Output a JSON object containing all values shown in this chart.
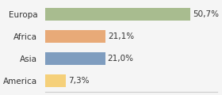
{
  "categories": [
    "America",
    "Asia",
    "Africa",
    "Europa"
  ],
  "values": [
    7.3,
    21.0,
    21.1,
    50.7
  ],
  "labels": [
    "7,3%",
    "21,0%",
    "21,1%",
    "50,7%"
  ],
  "bar_colors": [
    "#f5d07a",
    "#7f9dbf",
    "#e8aa78",
    "#a8bc8f"
  ],
  "background_color": "#f5f5f5",
  "xlim": [
    0,
    60
  ],
  "bar_height": 0.55,
  "label_fontsize": 7.5,
  "ytick_fontsize": 7.5
}
